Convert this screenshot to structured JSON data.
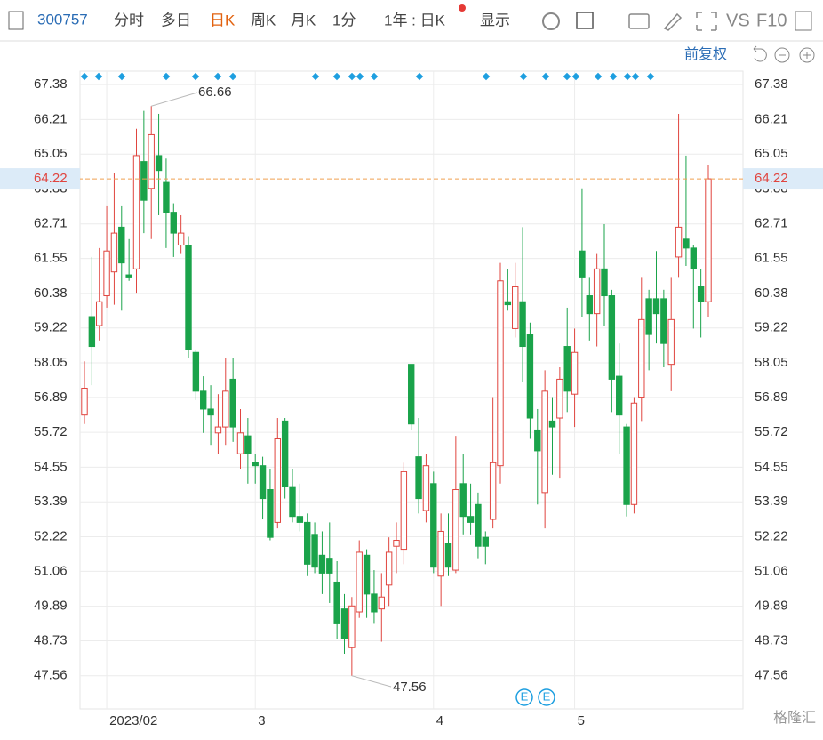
{
  "toolbar": {
    "code": "300757",
    "tabs": [
      "分时",
      "多日",
      "日K",
      "周K",
      "月K",
      "1分"
    ],
    "period": "1年 : 日K",
    "display": "显示",
    "vs": "VS",
    "f10": "F10"
  },
  "adjust": "前复权",
  "watermark": "格隆汇",
  "event_markers": [
    "E",
    "E"
  ],
  "chart_data": {
    "type": "candlestick",
    "categories": [
      null,
      null,
      null,
      "2023/02",
      null,
      null,
      null,
      null,
      null,
      null,
      null,
      null,
      null,
      null,
      null,
      null,
      null,
      null,
      null,
      null,
      null,
      null,
      null,
      "3",
      null,
      null,
      null,
      null,
      null,
      null,
      null,
      null,
      null,
      null,
      null,
      null,
      null,
      null,
      null,
      null,
      null,
      null,
      null,
      null,
      null,
      null,
      null,
      "4",
      null,
      null,
      null,
      null,
      null,
      null,
      null,
      null,
      null,
      null,
      null,
      null,
      null,
      null,
      null,
      null,
      null,
      null,
      "5",
      null,
      null,
      null,
      null,
      null,
      null,
      null,
      null,
      null,
      null,
      null,
      null,
      null,
      null,
      null,
      null,
      null,
      null
    ],
    "open": [
      56.3,
      59.6,
      59.3,
      60.3,
      61.1,
      62.6,
      61.0,
      61.2,
      64.8,
      63.9,
      65.0,
      64.1,
      63.1,
      62.0,
      62.0,
      58.4,
      57.1,
      56.5,
      55.7,
      55.9,
      57.5,
      55.0,
      55.6,
      54.7,
      54.6,
      53.8,
      52.7,
      56.1,
      53.9,
      52.9,
      52.7,
      52.3,
      51.6,
      51.5,
      50.7,
      49.8,
      48.5,
      49.7,
      51.6,
      50.3,
      49.8,
      50.6,
      51.9,
      51.8,
      58.0,
      54.9,
      53.1,
      54.0,
      50.9,
      52.0,
      51.1,
      54.0,
      52.9,
      53.3,
      52.2,
      52.8,
      54.6,
      60.1,
      59.2,
      60.1,
      59.0,
      55.8,
      53.7,
      56.1,
      56.2,
      58.6,
      57.0,
      61.8,
      60.3,
      59.7,
      61.2,
      60.3,
      57.6,
      55.9,
      53.3,
      56.9,
      60.2,
      60.2,
      60.2,
      58.0,
      61.6,
      62.2,
      61.9,
      60.6,
      60.1
    ],
    "high": [
      58.1,
      61.6,
      61.9,
      63.3,
      64.4,
      63.3,
      62.2,
      65.9,
      66.5,
      66.66,
      66.4,
      64.9,
      63.4,
      63.0,
      62.3,
      58.5,
      57.6,
      57.3,
      57.0,
      58.2,
      58.2,
      56.5,
      56.2,
      55.0,
      54.9,
      54.5,
      56.2,
      56.2,
      54.5,
      54.0,
      53.0,
      52.7,
      52.4,
      52.7,
      51.4,
      50.3,
      50.2,
      52.1,
      51.8,
      51.1,
      51.0,
      52.2,
      52.7,
      54.7,
      58.0,
      56.2,
      55.0,
      54.4,
      53.0,
      53.0,
      55.6,
      55.0,
      54.0,
      53.7,
      52.4,
      56.9,
      61.4,
      61.2,
      61.4,
      62.6,
      59.4,
      56.5,
      57.8,
      56.9,
      57.9,
      59.9,
      59.2,
      63.9,
      60.9,
      61.7,
      62.7,
      60.5,
      58.7,
      56.0,
      56.9,
      60.9,
      60.5,
      61.8,
      60.5,
      60.9,
      66.4,
      65.0,
      62.0,
      61.2,
      64.7
    ],
    "low": [
      56.0,
      57.3,
      58.8,
      59.9,
      60.0,
      59.8,
      60.8,
      60.4,
      62.4,
      62.2,
      63.0,
      61.9,
      61.6,
      61.7,
      58.2,
      56.8,
      55.7,
      55.3,
      55.0,
      55.3,
      55.4,
      54.5,
      54.0,
      54.0,
      52.8,
      52.1,
      52.5,
      53.5,
      52.7,
      52.4,
      50.9,
      51.0,
      50.3,
      50.0,
      48.8,
      48.3,
      47.56,
      49.5,
      49.5,
      49.3,
      48.7,
      49.9,
      51.0,
      51.3,
      55.8,
      53.0,
      52.7,
      51.0,
      49.9,
      50.9,
      51.0,
      52.3,
      52.3,
      51.5,
      51.3,
      52.5,
      54.0,
      59.8,
      58.9,
      57.4,
      55.5,
      53.3,
      52.5,
      54.3,
      54.2,
      56.4,
      55.9,
      59.6,
      58.8,
      58.6,
      59.3,
      56.4,
      55.0,
      52.9,
      53.0,
      56.1,
      57.8,
      58.7,
      57.9,
      57.1,
      60.9,
      61.3,
      59.2,
      58.9,
      59.6
    ],
    "close": [
      57.2,
      58.6,
      60.1,
      61.8,
      62.4,
      61.4,
      60.9,
      65.0,
      63.5,
      65.7,
      64.5,
      63.1,
      62.4,
      62.4,
      58.5,
      57.1,
      56.5,
      56.3,
      55.9,
      57.1,
      55.9,
      55.7,
      55.0,
      54.6,
      53.5,
      52.2,
      55.5,
      53.9,
      52.9,
      52.7,
      51.3,
      51.2,
      51.0,
      51.0,
      49.3,
      48.8,
      49.9,
      51.7,
      50.3,
      49.7,
      50.2,
      51.7,
      52.1,
      54.4,
      56.0,
      53.5,
      54.6,
      51.2,
      52.4,
      51.2,
      53.8,
      52.9,
      52.7,
      51.9,
      51.9,
      54.7,
      60.8,
      60.0,
      60.6,
      58.6,
      56.2,
      55.1,
      57.1,
      55.9,
      57.5,
      57.1,
      58.4,
      60.9,
      59.7,
      61.2,
      60.3,
      57.5,
      56.3,
      53.3,
      56.7,
      59.5,
      59.0,
      59.7,
      58.7,
      59.5,
      62.6,
      61.9,
      61.2,
      60.1,
      64.22
    ],
    "up_color": "#e0453f",
    "down_color": "#1aa34a",
    "ylim": [
      46.45,
      67.83
    ],
    "yticks": [
      67.38,
      66.21,
      65.05,
      63.88,
      62.71,
      61.55,
      60.38,
      59.22,
      58.05,
      56.89,
      55.72,
      54.55,
      53.39,
      52.22,
      51.06,
      49.89,
      48.73,
      47.56
    ],
    "grid": true
  }
}
